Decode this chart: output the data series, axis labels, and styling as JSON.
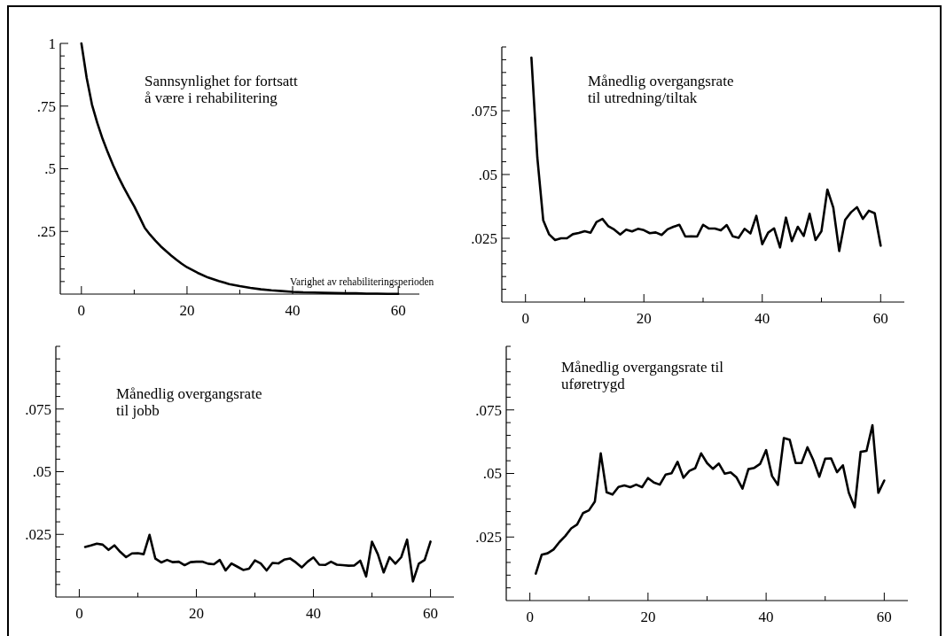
{
  "chart_data": [
    {
      "type": "line",
      "title": "Sannsynlighet for fortsatt\nå være i rehabilitering",
      "xlabel": "Varighet av rehabiliteringsperioden",
      "x": [
        0,
        1,
        2,
        3,
        4,
        5,
        6,
        7,
        8,
        9,
        10,
        11,
        12,
        13,
        14,
        15,
        16,
        17,
        18,
        19,
        20,
        22,
        24,
        26,
        28,
        30,
        32,
        34,
        36,
        38,
        40,
        42,
        44,
        46,
        48,
        50,
        52,
        54,
        56,
        58,
        60
      ],
      "values": [
        1,
        0.862,
        0.756,
        0.683,
        0.62,
        0.565,
        0.514,
        0.468,
        0.426,
        0.387,
        0.35,
        0.308,
        0.264,
        0.237,
        0.213,
        0.191,
        0.172,
        0.154,
        0.137,
        0.121,
        0.107,
        0.085,
        0.066,
        0.052,
        0.04,
        0.032,
        0.025,
        0.019,
        0.015,
        0.012,
        0.009,
        0.007,
        0.006,
        0.005,
        0.004,
        0.003,
        0.003,
        0.002,
        0.002,
        0.001,
        0.001
      ],
      "color": "#000000",
      "xlim": [
        -4,
        64
      ],
      "ylim": [
        0,
        1
      ],
      "xticks": [
        0,
        {
          "value": 10,
          "label": null
        },
        20,
        {
          "value": 30,
          "label": null
        },
        40,
        {
          "value": 50,
          "label": null
        },
        60
      ],
      "yticks": [
        {
          "value": 0.05,
          "label": null
        },
        {
          "value": 0.1,
          "label": null
        },
        {
          "value": 0.15,
          "label": null
        },
        {
          "value": 0.2,
          "label": null
        },
        {
          "value": 0.25,
          "label": ".25"
        },
        {
          "value": 0.3,
          "label": null
        },
        {
          "value": 0.35,
          "label": null
        },
        {
          "value": 0.4,
          "label": null
        },
        {
          "value": 0.45,
          "label": null
        },
        {
          "value": 0.5,
          "label": ".5"
        },
        {
          "value": 0.55,
          "label": null
        },
        {
          "value": 0.6,
          "label": null
        },
        {
          "value": 0.65,
          "label": null
        },
        {
          "value": 0.7,
          "label": null
        },
        {
          "value": 0.75,
          "label": ".75"
        },
        {
          "value": 0.8,
          "label": null
        },
        {
          "value": 0.85,
          "label": null
        },
        {
          "value": 0.9,
          "label": null
        },
        {
          "value": 0.95,
          "label": null
        },
        1
      ],
      "grid": false
    },
    {
      "type": "line",
      "title": "Månedlig overgangsrate\ntil utredning/tiltak",
      "x": [
        1,
        2,
        3,
        4,
        5,
        6,
        7,
        8,
        9,
        10,
        11,
        12,
        13,
        14,
        15,
        16,
        17,
        18,
        19,
        20,
        21,
        22,
        23,
        24,
        25,
        26,
        27,
        28,
        29,
        30,
        31,
        32,
        33,
        34,
        35,
        36,
        37,
        38,
        39,
        40,
        41,
        42,
        43,
        44,
        45,
        46,
        47,
        48,
        49,
        50,
        51,
        52,
        53,
        54,
        55,
        56,
        57,
        58,
        59,
        60
      ],
      "values": [
        0.0958,
        0.0566,
        0.032,
        0.0265,
        0.0243,
        0.025,
        0.025,
        0.0266,
        0.0271,
        0.0278,
        0.0272,
        0.0314,
        0.0326,
        0.0297,
        0.0284,
        0.0265,
        0.0284,
        0.0277,
        0.0287,
        0.0282,
        0.027,
        0.0273,
        0.0263,
        0.0285,
        0.0295,
        0.0303,
        0.0257,
        0.0258,
        0.0257,
        0.0303,
        0.0288,
        0.0288,
        0.0281,
        0.0302,
        0.0258,
        0.0252,
        0.0287,
        0.0269,
        0.0338,
        0.0227,
        0.0272,
        0.0289,
        0.0214,
        0.0331,
        0.0239,
        0.0295,
        0.0259,
        0.0346,
        0.0243,
        0.0278,
        0.0441,
        0.037,
        0.02,
        0.0322,
        0.0352,
        0.0372,
        0.0326,
        0.0358,
        0.0348,
        0.0221
      ],
      "color": "#000000",
      "xlim": [
        -4,
        64
      ],
      "ylim": [
        0,
        0.1
      ],
      "xticks": [
        0,
        {
          "value": 10,
          "label": null
        },
        20,
        {
          "value": 30,
          "label": null
        },
        40,
        {
          "value": 50,
          "label": null
        },
        60
      ],
      "yticks": [
        {
          "value": 0.005,
          "label": null
        },
        {
          "value": 0.01,
          "label": null
        },
        {
          "value": 0.015,
          "label": null
        },
        {
          "value": 0.02,
          "label": null
        },
        {
          "value": 0.025,
          "label": ".025"
        },
        {
          "value": 0.03,
          "label": null
        },
        {
          "value": 0.035,
          "label": null
        },
        {
          "value": 0.04,
          "label": null
        },
        {
          "value": 0.045,
          "label": null
        },
        {
          "value": 0.05,
          "label": ".05"
        },
        {
          "value": 0.055,
          "label": null
        },
        {
          "value": 0.06,
          "label": null
        },
        {
          "value": 0.065,
          "label": null
        },
        {
          "value": 0.07,
          "label": null
        },
        {
          "value": 0.075,
          "label": ".075"
        },
        {
          "value": 0.08,
          "label": null
        },
        {
          "value": 0.085,
          "label": null
        },
        {
          "value": 0.09,
          "label": null
        },
        {
          "value": 0.095,
          "label": null
        },
        {
          "value": 0.1,
          "label": null
        }
      ],
      "grid": false
    },
    {
      "type": "line",
      "title": "Månedlig overgangsrate\ntil jobb",
      "x": [
        1,
        2,
        3,
        4,
        5,
        6,
        7,
        8,
        9,
        10,
        11,
        12,
        13,
        14,
        15,
        16,
        17,
        18,
        19,
        20,
        21,
        22,
        23,
        24,
        25,
        26,
        27,
        28,
        29,
        30,
        31,
        32,
        33,
        34,
        35,
        36,
        37,
        38,
        39,
        40,
        41,
        42,
        43,
        44,
        45,
        46,
        47,
        48,
        49,
        50,
        51,
        52,
        53,
        54,
        55,
        56,
        57,
        58,
        59,
        60
      ],
      "values": [
        0.02,
        0.0206,
        0.0213,
        0.0209,
        0.0188,
        0.0206,
        0.018,
        0.0159,
        0.0174,
        0.0175,
        0.0171,
        0.0248,
        0.0153,
        0.0138,
        0.0148,
        0.0139,
        0.0141,
        0.0127,
        0.0139,
        0.0141,
        0.0141,
        0.0133,
        0.0131,
        0.0148,
        0.0106,
        0.0134,
        0.0121,
        0.0108,
        0.0113,
        0.0146,
        0.0134,
        0.0106,
        0.0136,
        0.0134,
        0.0149,
        0.0154,
        0.0138,
        0.0118,
        0.0141,
        0.0158,
        0.0129,
        0.0128,
        0.0141,
        0.0129,
        0.0127,
        0.0125,
        0.0126,
        0.0145,
        0.0082,
        0.0221,
        0.0171,
        0.0098,
        0.0159,
        0.0133,
        0.0159,
        0.0229,
        0.0062,
        0.0133,
        0.0148,
        0.0221
      ],
      "color": "#000000",
      "xlim": [
        -4,
        64
      ],
      "ylim": [
        0,
        0.1
      ],
      "xticks": [
        0,
        {
          "value": 10,
          "label": null
        },
        20,
        {
          "value": 30,
          "label": null
        },
        40,
        {
          "value": 50,
          "label": null
        },
        60
      ],
      "yticks": [
        {
          "value": 0.005,
          "label": null
        },
        {
          "value": 0.01,
          "label": null
        },
        {
          "value": 0.015,
          "label": null
        },
        {
          "value": 0.02,
          "label": null
        },
        {
          "value": 0.025,
          "label": ".025"
        },
        {
          "value": 0.03,
          "label": null
        },
        {
          "value": 0.035,
          "label": null
        },
        {
          "value": 0.04,
          "label": null
        },
        {
          "value": 0.045,
          "label": null
        },
        {
          "value": 0.05,
          "label": ".05"
        },
        {
          "value": 0.055,
          "label": null
        },
        {
          "value": 0.06,
          "label": null
        },
        {
          "value": 0.065,
          "label": null
        },
        {
          "value": 0.07,
          "label": null
        },
        {
          "value": 0.075,
          "label": ".075"
        },
        {
          "value": 0.08,
          "label": null
        },
        {
          "value": 0.085,
          "label": null
        },
        {
          "value": 0.09,
          "label": null
        },
        {
          "value": 0.095,
          "label": null
        },
        {
          "value": 0.1,
          "label": null
        }
      ],
      "grid": false
    },
    {
      "type": "line",
      "title": "Månedlig overgangsrate til\nuføretrygd",
      "x": [
        1,
        2,
        3,
        4,
        5,
        6,
        7,
        8,
        9,
        10,
        11,
        12,
        13,
        14,
        15,
        16,
        17,
        18,
        19,
        20,
        21,
        22,
        23,
        24,
        25,
        26,
        27,
        28,
        29,
        30,
        31,
        32,
        33,
        34,
        35,
        36,
        37,
        38,
        39,
        40,
        41,
        42,
        43,
        44,
        45,
        46,
        47,
        48,
        49,
        50,
        51,
        52,
        53,
        54,
        55,
        56,
        57,
        58,
        59,
        60
      ],
      "values": [
        0.0106,
        0.018,
        0.0186,
        0.0201,
        0.023,
        0.0254,
        0.0284,
        0.0299,
        0.0344,
        0.0355,
        0.0389,
        0.0579,
        0.0426,
        0.0417,
        0.0447,
        0.0453,
        0.0446,
        0.0456,
        0.0446,
        0.0482,
        0.0464,
        0.0456,
        0.0496,
        0.0501,
        0.0546,
        0.0483,
        0.051,
        0.0521,
        0.0579,
        0.0541,
        0.0518,
        0.0539,
        0.0499,
        0.0504,
        0.0484,
        0.044,
        0.0517,
        0.0522,
        0.0538,
        0.0592,
        0.049,
        0.0455,
        0.0639,
        0.0632,
        0.0541,
        0.0541,
        0.0603,
        0.0552,
        0.0487,
        0.0558,
        0.0559,
        0.0505,
        0.0532,
        0.0424,
        0.0367,
        0.0585,
        0.0589,
        0.069,
        0.0424,
        0.0472
      ],
      "color": "#000000",
      "xlim": [
        -4,
        64
      ],
      "ylim": [
        0,
        0.1
      ],
      "xticks": [
        0,
        {
          "value": 10,
          "label": null
        },
        20,
        {
          "value": 30,
          "label": null
        },
        40,
        {
          "value": 50,
          "label": null
        },
        60
      ],
      "yticks": [
        {
          "value": 0.005,
          "label": null
        },
        {
          "value": 0.01,
          "label": null
        },
        {
          "value": 0.015,
          "label": null
        },
        {
          "value": 0.02,
          "label": null
        },
        {
          "value": 0.025,
          "label": ".025"
        },
        {
          "value": 0.03,
          "label": null
        },
        {
          "value": 0.035,
          "label": null
        },
        {
          "value": 0.04,
          "label": null
        },
        {
          "value": 0.045,
          "label": null
        },
        {
          "value": 0.05,
          "label": ".05"
        },
        {
          "value": 0.055,
          "label": null
        },
        {
          "value": 0.06,
          "label": null
        },
        {
          "value": 0.065,
          "label": null
        },
        {
          "value": 0.07,
          "label": null
        },
        {
          "value": 0.075,
          "label": ".075"
        },
        {
          "value": 0.08,
          "label": null
        },
        {
          "value": 0.085,
          "label": null
        },
        {
          "value": 0.09,
          "label": null
        },
        {
          "value": 0.095,
          "label": null
        },
        {
          "value": 0.1,
          "label": null
        }
      ],
      "grid": false
    }
  ]
}
